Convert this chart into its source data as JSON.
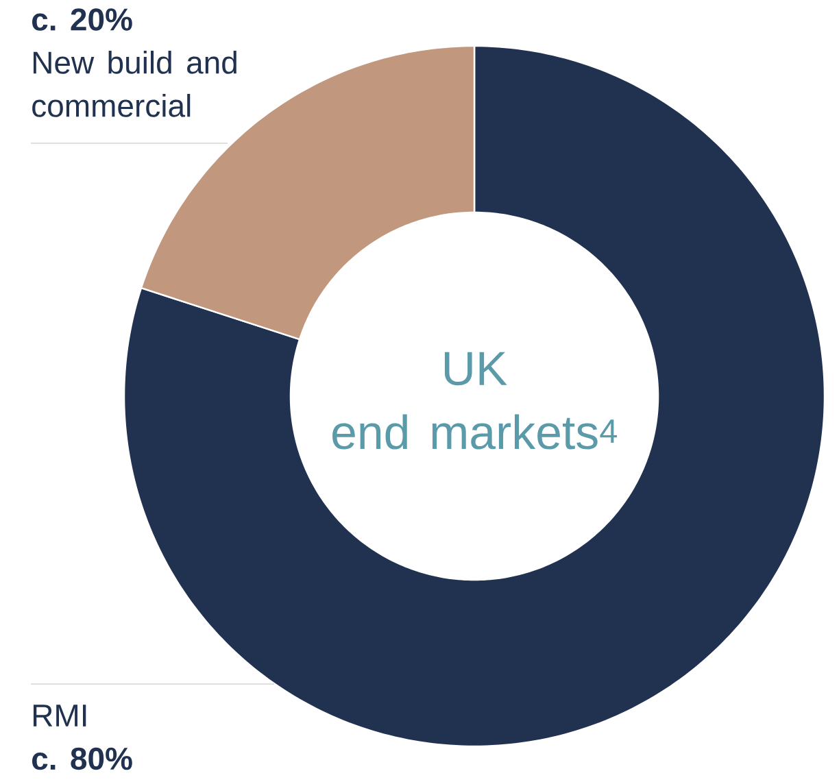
{
  "chart_data": {
    "type": "donut",
    "title": "UK",
    "subtitle": "end markets$^{4}$",
    "categories": [
      "RMI",
      "New build and commercial"
    ],
    "values": [
      80,
      20
    ],
    "value_labels": [
      "c. 80%",
      "c. 20%"
    ],
    "colors": [
      "#213251",
      "#c1977d"
    ]
  }
}
